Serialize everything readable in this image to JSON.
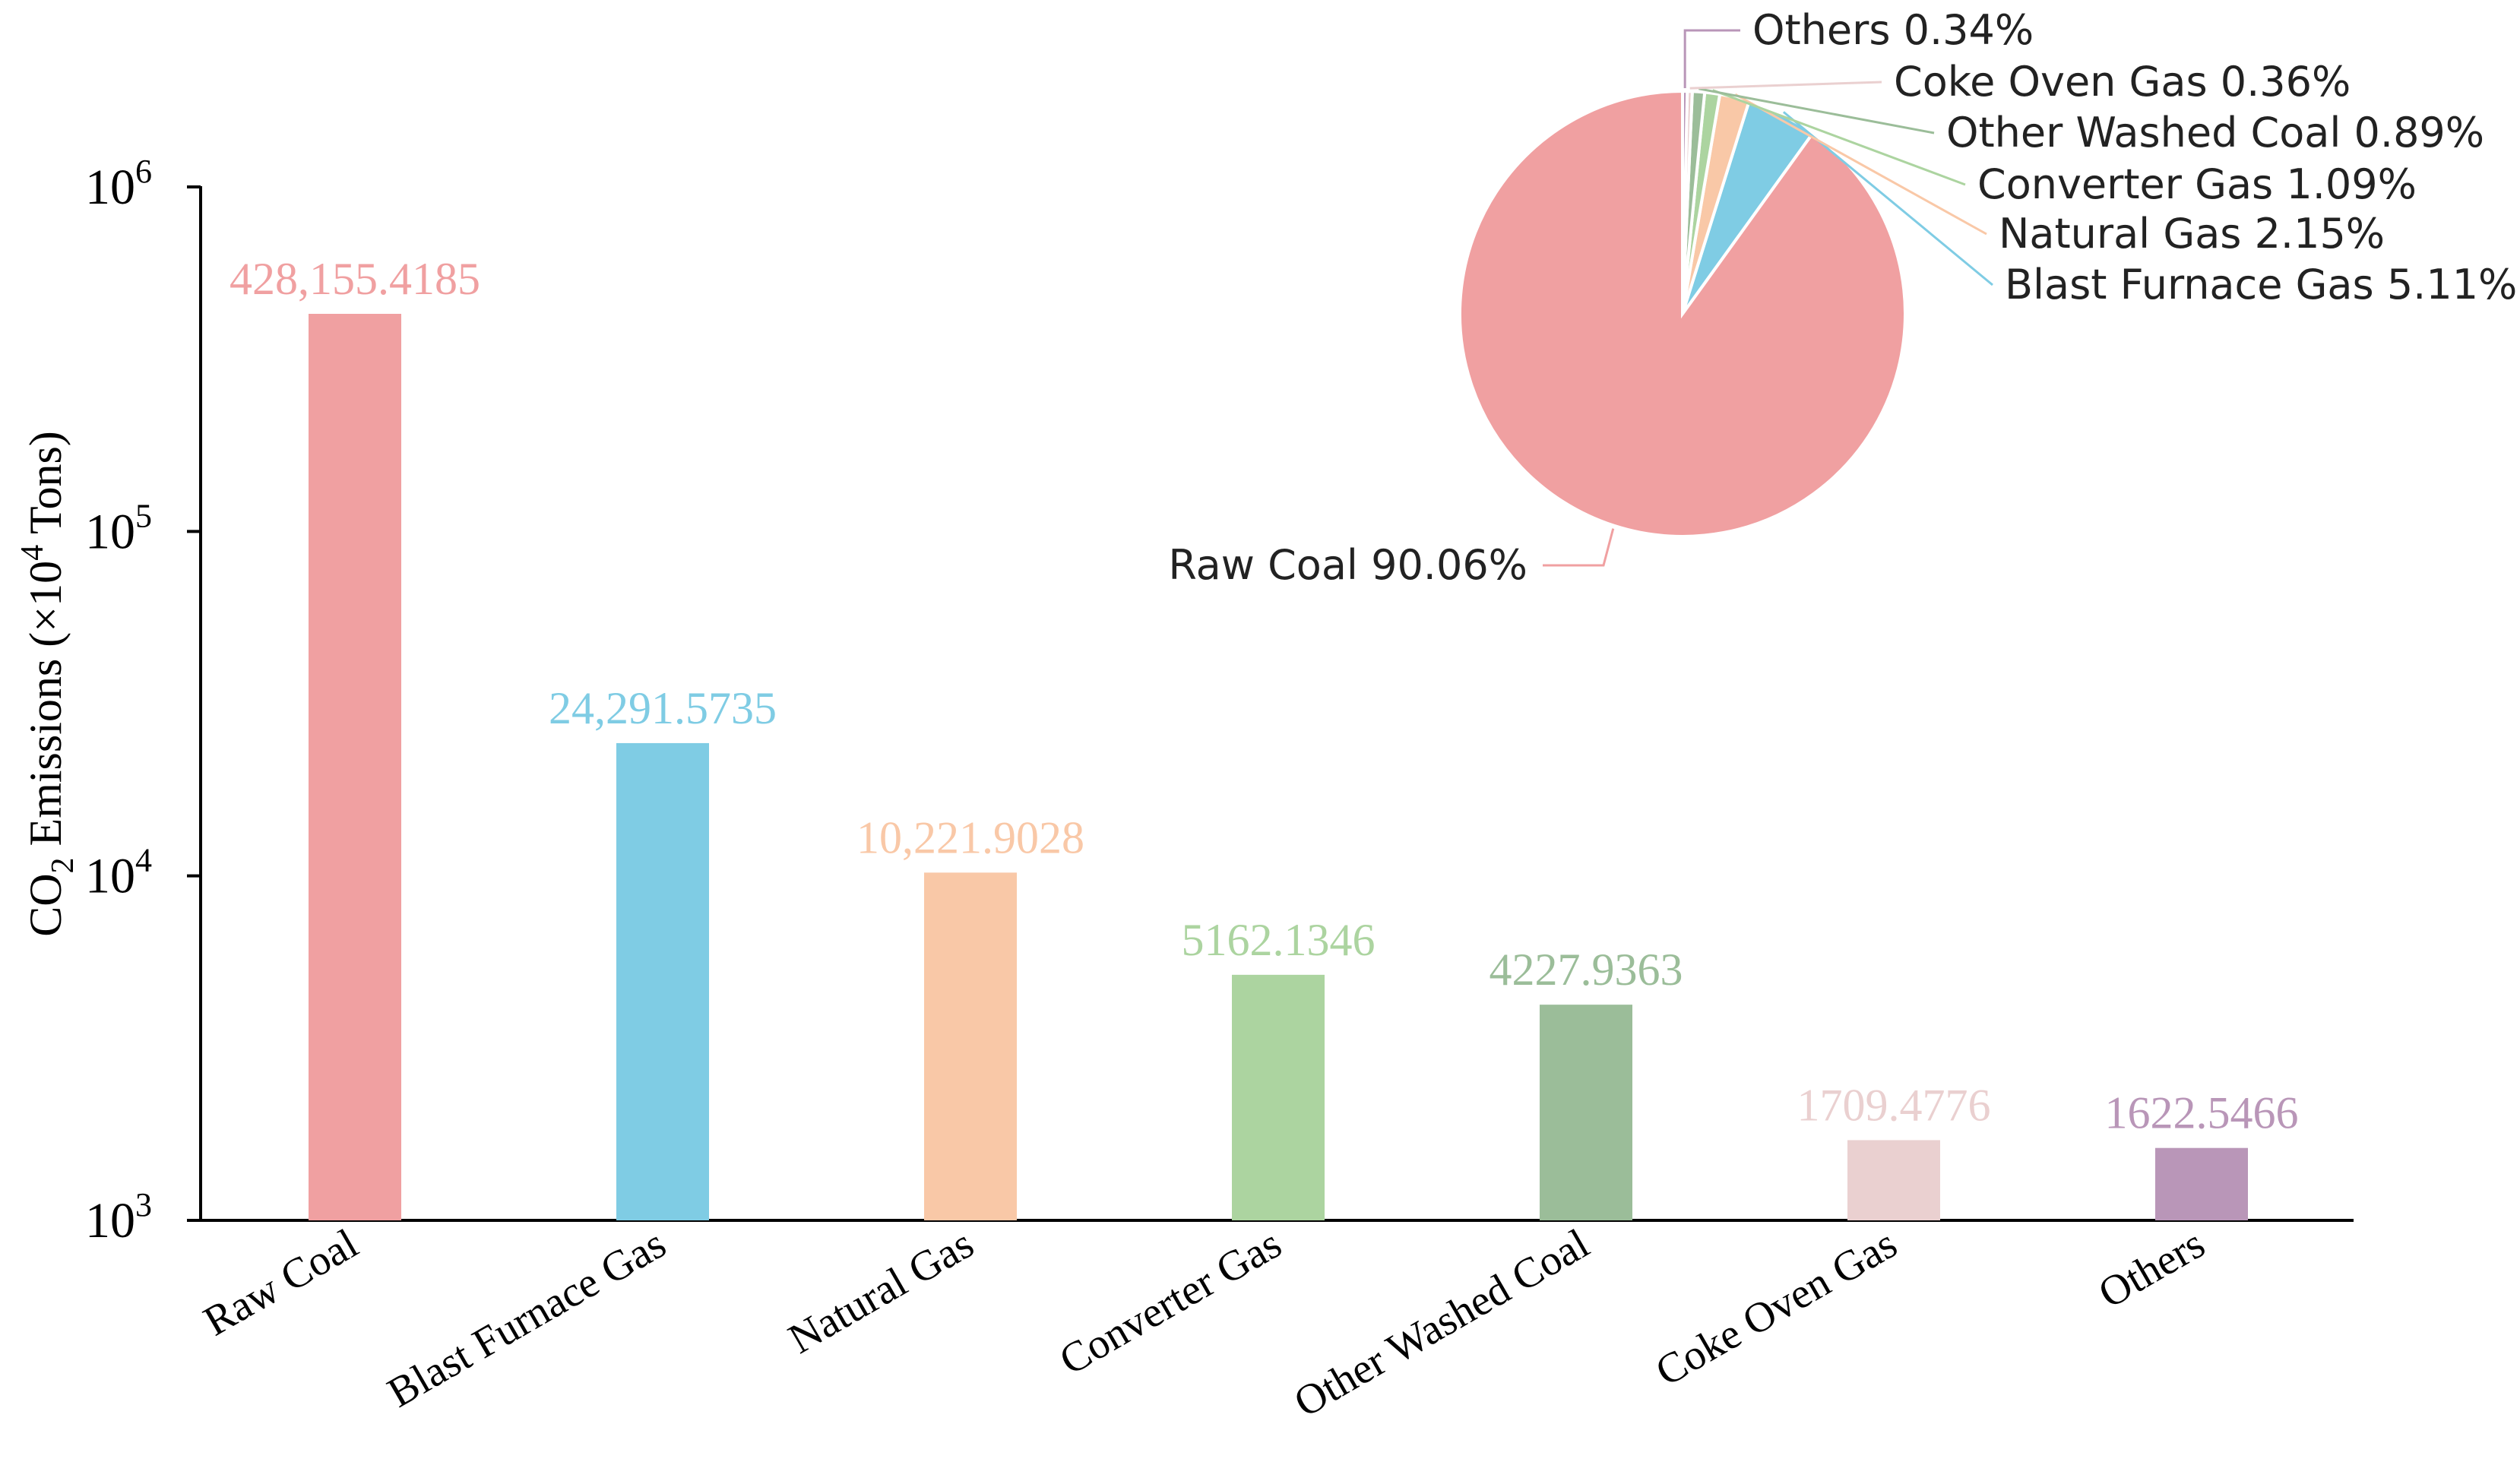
{
  "colors": {
    "axis": "#000000",
    "raw_coal": "#f0a0a1",
    "blast_furnace_gas": "#7fcce4",
    "natural_gas": "#f9c8a7",
    "converter_gas": "#acd4a0",
    "other_washed_coal": "#9bbd99",
    "coke_oven_gas": "#ead0d0",
    "others": "#b996b8"
  },
  "chart_data": [
    {
      "type": "bar",
      "scale": "log",
      "ylabel": "CO2 Emissions (×10^4 Tons)",
      "ylabel_parts": {
        "pre": "CO",
        "sub": "2",
        "mid": " Emissions (×10",
        "sup": "4",
        "post": " Tons)"
      },
      "ylim": [
        1000,
        1000000
      ],
      "yticks": [
        {
          "value": 1000,
          "base": "10",
          "exp": "3"
        },
        {
          "value": 10000,
          "base": "10",
          "exp": "4"
        },
        {
          "value": 100000,
          "base": "10",
          "exp": "5"
        },
        {
          "value": 1000000,
          "base": "10",
          "exp": "6"
        }
      ],
      "categories": [
        "Raw Coal",
        "Blast Furnace Gas",
        "Natural Gas",
        "Converter Gas",
        "Other Washed Coal",
        "Coke Oven Gas",
        "Others"
      ],
      "values": [
        428155.4185,
        24291.5735,
        10221.9028,
        5162.1346,
        4227.9363,
        1709.4776,
        1622.5466
      ],
      "value_labels": [
        "428,155.4185",
        "24,291.5735",
        "10,221.9028",
        "5162.1346",
        "4227.9363",
        "1709.4776",
        "1622.5466"
      ],
      "color_keys": [
        "raw_coal",
        "blast_furnace_gas",
        "natural_gas",
        "converter_gas",
        "other_washed_coal",
        "coke_oven_gas",
        "others"
      ]
    },
    {
      "type": "pie",
      "slices": [
        {
          "label": "Raw Coal 90.06%",
          "value": 90.06,
          "color_key": "raw_coal"
        },
        {
          "label": "Blast Furnace Gas 5.11%",
          "value": 5.11,
          "color_key": "blast_furnace_gas"
        },
        {
          "label": "Natural Gas 2.15%",
          "value": 2.15,
          "color_key": "natural_gas"
        },
        {
          "label": "Converter Gas 1.09%",
          "value": 1.09,
          "color_key": "converter_gas"
        },
        {
          "label": "Other Washed Coal 0.89%",
          "value": 0.89,
          "color_key": "other_washed_coal"
        },
        {
          "label": "Coke Oven Gas 0.36%",
          "value": 0.36,
          "color_key": "coke_oven_gas"
        },
        {
          "label": "Others 0.34%",
          "value": 0.34,
          "color_key": "others"
        }
      ]
    }
  ]
}
